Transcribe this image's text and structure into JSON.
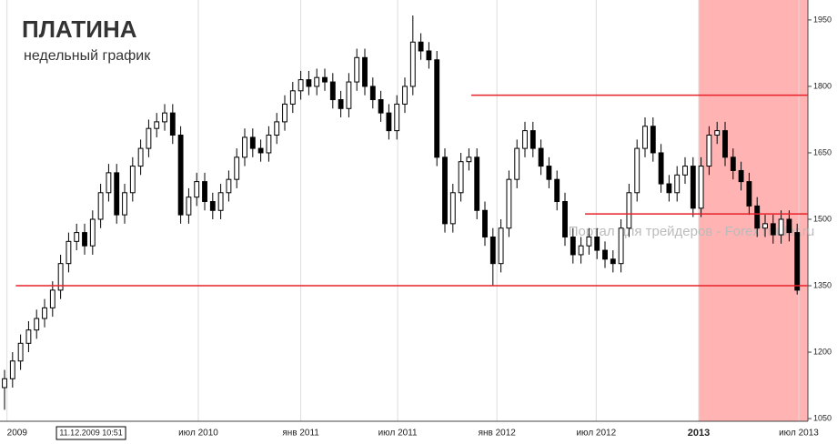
{
  "chart_data": {
    "type": "candlestick",
    "title": "ПЛАТИНА",
    "subtitle": "недельный график",
    "watermark": "Портал для трейдеров - ForexTrader.ru",
    "open": [
      1120,
      1140,
      1180,
      1220,
      1250,
      1276,
      1300,
      1340,
      1400,
      1450,
      1470,
      1440,
      1500,
      1560,
      1605,
      1510,
      1560,
      1620,
      1660,
      1705,
      1720,
      1740,
      1690,
      1510,
      1550,
      1585,
      1540,
      1520,
      1560,
      1590,
      1640,
      1685,
      1660,
      1650,
      1690,
      1720,
      1760,
      1790,
      1815,
      1800,
      1820,
      1810,
      1770,
      1750,
      1810,
      1865,
      1800,
      1770,
      1740,
      1700,
      1760,
      1800,
      1900,
      1880,
      1860,
      1640,
      1490,
      1560,
      1630,
      1640,
      1520,
      1460,
      1400,
      1480,
      1590,
      1660,
      1700,
      1660,
      1620,
      1590,
      1540,
      1460,
      1420,
      1440,
      1460,
      1430,
      1410,
      1400,
      1480,
      1560,
      1660,
      1710,
      1650,
      1580,
      1560,
      1600,
      1620,
      1525,
      1620,
      1690,
      1700,
      1640,
      1610,
      1585,
      1530,
      1480,
      1490,
      1465,
      1500,
      1470
    ],
    "high": [
      1160,
      1200,
      1240,
      1270,
      1296,
      1320,
      1360,
      1420,
      1470,
      1490,
      1490,
      1520,
      1580,
      1625,
      1625,
      1580,
      1640,
      1680,
      1725,
      1740,
      1760,
      1760,
      1710,
      1570,
      1605,
      1605,
      1560,
      1580,
      1610,
      1660,
      1705,
      1705,
      1680,
      1710,
      1740,
      1780,
      1810,
      1835,
      1835,
      1840,
      1840,
      1830,
      1790,
      1830,
      1885,
      1885,
      1820,
      1790,
      1760,
      1780,
      1820,
      1960,
      1920,
      1900,
      1880,
      1660,
      1580,
      1650,
      1660,
      1660,
      1540,
      1480,
      1500,
      1610,
      1680,
      1720,
      1720,
      1680,
      1640,
      1610,
      1560,
      1480,
      1460,
      1480,
      1480,
      1450,
      1430,
      1500,
      1580,
      1680,
      1730,
      1730,
      1670,
      1600,
      1620,
      1640,
      1640,
      1640,
      1710,
      1720,
      1720,
      1660,
      1630,
      1605,
      1550,
      1510,
      1510,
      1520,
      1520,
      1490
    ],
    "low": [
      1070,
      1120,
      1160,
      1200,
      1230,
      1256,
      1280,
      1320,
      1380,
      1430,
      1420,
      1420,
      1480,
      1540,
      1490,
      1490,
      1540,
      1600,
      1640,
      1685,
      1700,
      1670,
      1490,
      1490,
      1530,
      1520,
      1500,
      1500,
      1540,
      1570,
      1620,
      1640,
      1630,
      1630,
      1670,
      1700,
      1740,
      1770,
      1780,
      1780,
      1790,
      1750,
      1730,
      1730,
      1790,
      1780,
      1750,
      1720,
      1680,
      1680,
      1740,
      1780,
      1860,
      1840,
      1620,
      1470,
      1470,
      1540,
      1610,
      1500,
      1440,
      1350,
      1380,
      1460,
      1570,
      1640,
      1640,
      1600,
      1570,
      1520,
      1440,
      1400,
      1400,
      1420,
      1410,
      1390,
      1380,
      1380,
      1460,
      1540,
      1640,
      1630,
      1560,
      1540,
      1540,
      1580,
      1505,
      1505,
      1600,
      1670,
      1620,
      1590,
      1565,
      1510,
      1460,
      1460,
      1445,
      1445,
      1450,
      1330
    ],
    "close": [
      1140,
      1180,
      1220,
      1250,
      1276,
      1300,
      1340,
      1400,
      1450,
      1470,
      1440,
      1500,
      1560,
      1605,
      1510,
      1560,
      1620,
      1660,
      1705,
      1720,
      1740,
      1690,
      1510,
      1550,
      1585,
      1540,
      1520,
      1560,
      1590,
      1640,
      1685,
      1660,
      1650,
      1690,
      1720,
      1760,
      1790,
      1815,
      1800,
      1820,
      1810,
      1770,
      1750,
      1810,
      1865,
      1800,
      1770,
      1740,
      1700,
      1760,
      1800,
      1900,
      1880,
      1860,
      1640,
      1490,
      1560,
      1630,
      1640,
      1520,
      1460,
      1400,
      1480,
      1590,
      1660,
      1700,
      1660,
      1620,
      1590,
      1540,
      1460,
      1420,
      1440,
      1460,
      1430,
      1410,
      1400,
      1480,
      1560,
      1660,
      1710,
      1650,
      1580,
      1560,
      1600,
      1620,
      1525,
      1620,
      1690,
      1700,
      1640,
      1610,
      1585,
      1530,
      1480,
      1490,
      1465,
      1500,
      1470,
      1340
    ],
    "ylim": [
      1044,
      1995
    ],
    "yticks": [
      1050,
      1200,
      1350,
      1500,
      1650,
      1800,
      1950
    ],
    "xlim": [
      -0.57,
      100.34
    ],
    "xticks": [
      {
        "value": 0.3,
        "label": "2009"
      },
      {
        "value": 24.2,
        "label": "июл 2010"
      },
      {
        "value": 37.0,
        "label": "янв 2011"
      },
      {
        "value": 49.1,
        "label": "июл 2011"
      },
      {
        "value": 61.5,
        "label": "янв 2012"
      },
      {
        "value": 73.9,
        "label": "июл 2012"
      },
      {
        "value": 86.7,
        "label": "2013"
      },
      {
        "value": 99.2,
        "label": "июл 2013"
      }
    ],
    "bold_xtick": 6,
    "cursor": {
      "value": 10.8,
      "label": "11.12.2009 10:51"
    },
    "levels": [
      {
        "y": 1780,
        "x0": 58.3
      },
      {
        "y": 1512,
        "x0": 72.5
      },
      {
        "y": 1350,
        "x0": 1.4
      }
    ],
    "level_color": "#e8202a",
    "highlight": {
      "x": [
        86.7,
        100.34
      ],
      "color": "#ffb3b3"
    },
    "up_color": "#ffffff",
    "down_color": "#000000"
  }
}
